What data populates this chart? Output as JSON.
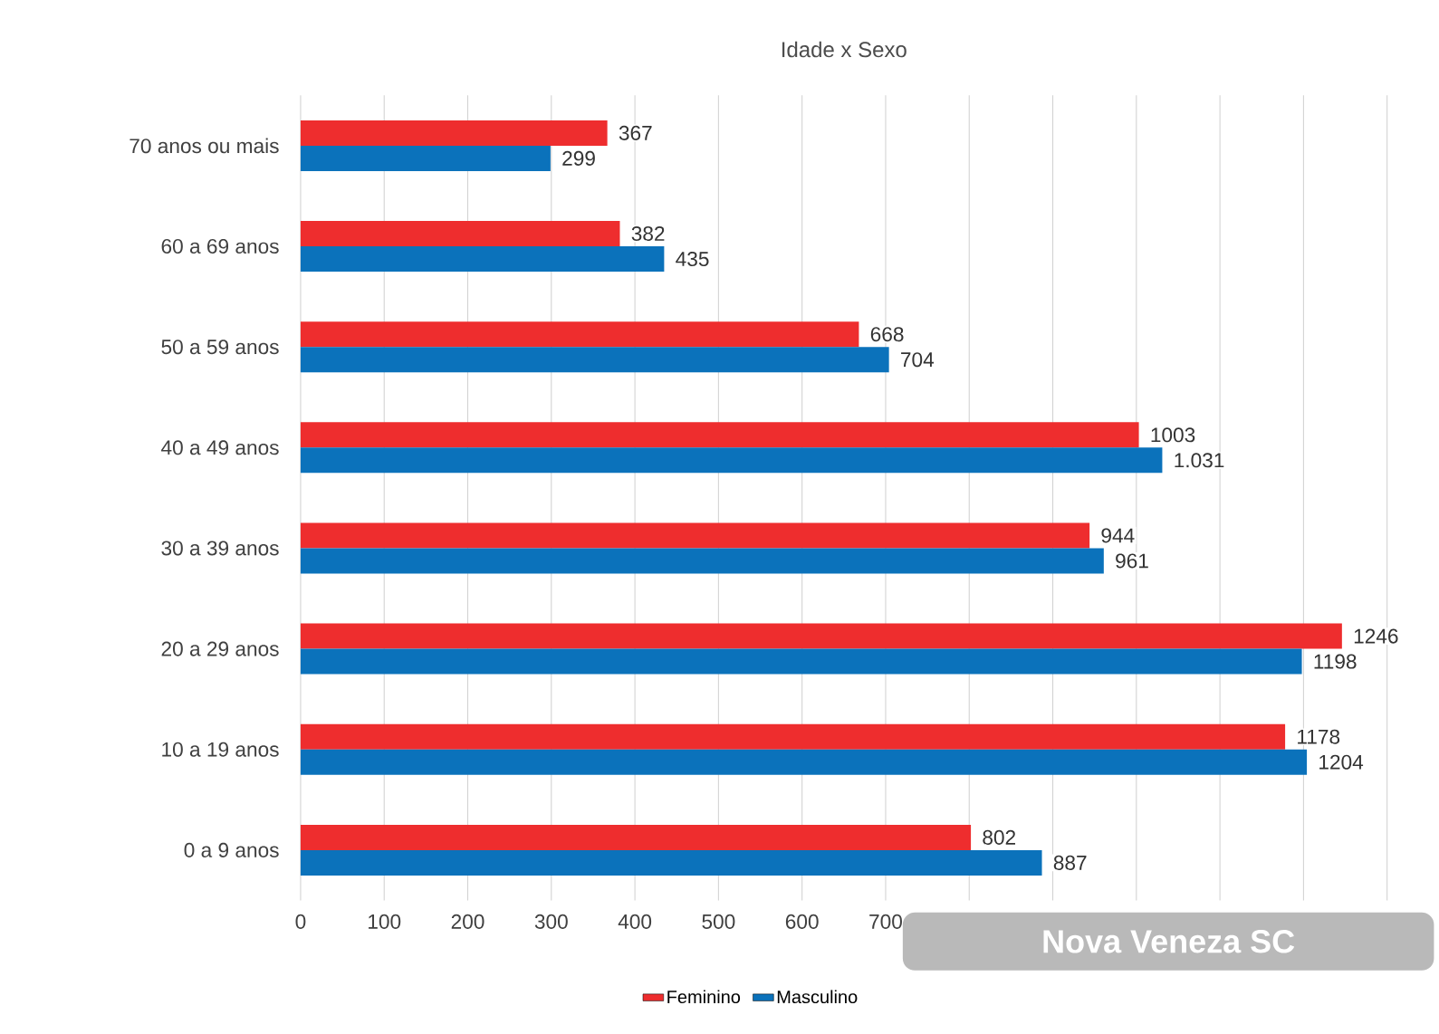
{
  "chart_data": {
    "type": "bar",
    "orientation": "horizontal",
    "title": "Idade x Sexo",
    "categories": [
      "70 anos ou mais",
      "60 a 69 anos",
      "50 a 59 anos",
      "40 a 49 anos",
      "30 a 39 anos",
      "20 a 29 anos",
      "10 a 19 anos",
      "0 a 9 anos"
    ],
    "series": [
      {
        "name": "Feminino",
        "color": "#ee2d2e",
        "values": [
          367,
          382,
          668,
          1003,
          944,
          1246,
          1178,
          802
        ],
        "value_labels": [
          "367",
          "382",
          "668",
          "1003",
          "944",
          "1246",
          "1178",
          "802"
        ]
      },
      {
        "name": "Masculino",
        "color": "#0b72bb",
        "values": [
          299,
          435,
          704,
          1031,
          961,
          1198,
          1204,
          887
        ],
        "value_labels": [
          "299",
          "435",
          "704",
          "1.031",
          "961",
          "1198",
          "1204",
          "887"
        ]
      }
    ],
    "xlim": [
      0,
      1300
    ],
    "xticks": [
      0,
      100,
      200,
      300,
      400,
      500,
      600,
      700,
      {
        "value": 800,
        "label": null
      },
      {
        "value": 900,
        "label": null
      },
      {
        "value": 1000,
        "label": null
      },
      {
        "value": 1100,
        "label": null
      },
      {
        "value": 1200,
        "label": null
      },
      {
        "value": 1300,
        "label": null
      }
    ],
    "grid": "x",
    "legend": "bottom",
    "annotations": [
      "Nova Veneza SC"
    ]
  }
}
